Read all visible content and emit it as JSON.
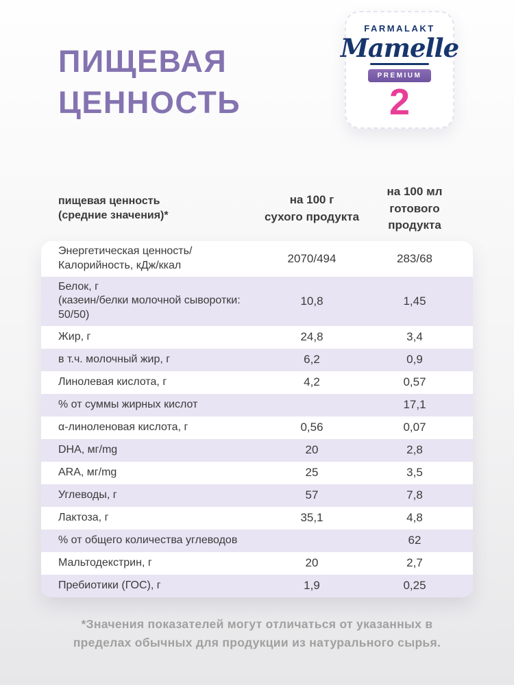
{
  "colors": {
    "title_purple": "#8473b0",
    "brand_navy": "#17366d",
    "stage_pink": "#e83e97",
    "premium_purple": "#7d5fa9",
    "row_lavender": "#e8e4f3",
    "text_dark": "#3a3a3a",
    "footnote_gray": "#a0a0a0"
  },
  "header": {
    "title_line1": "ПИЩЕВАЯ",
    "title_line2": "ЦЕННОСТЬ"
  },
  "brand": {
    "manufacturer": "FARMALAKT",
    "logo": "Mamelle",
    "tier": "PREMIUM",
    "stage": "2"
  },
  "table": {
    "header": {
      "col_label": "пищевая ценность\n(средние значения)*",
      "col_dry": "на 100 г\nсухого продукта",
      "col_ready": "на 100 мл\nготового продукта"
    },
    "rows": [
      {
        "label": "Энергетическая ценность/\nКалорийность, кДж/ккал",
        "per_100g_dry": "2070/494",
        "per_100ml_ready": "283/68",
        "shaded": false
      },
      {
        "label": "Белок, г\n(казеин/белки молочной сыворотки: 50/50)",
        "per_100g_dry": "10,8",
        "per_100ml_ready": "1,45",
        "shaded": true
      },
      {
        "label": "Жир, г",
        "per_100g_dry": "24,8",
        "per_100ml_ready": "3,4",
        "shaded": false
      },
      {
        "label": "в т.ч. молочный жир, г",
        "per_100g_dry": "6,2",
        "per_100ml_ready": "0,9",
        "shaded": true
      },
      {
        "label": "Линолевая кислота, г",
        "per_100g_dry": "4,2",
        "per_100ml_ready": "0,57",
        "shaded": false
      },
      {
        "label": "% от суммы жирных кислот",
        "per_100g_dry": "",
        "per_100ml_ready": "17,1",
        "shaded": true
      },
      {
        "label": "α-линоленовая кислота, г",
        "per_100g_dry": "0,56",
        "per_100ml_ready": "0,07",
        "shaded": false
      },
      {
        "label": "DHA, мг/mg",
        "per_100g_dry": "20",
        "per_100ml_ready": "2,8",
        "shaded": true
      },
      {
        "label": "ARA, мг/mg",
        "per_100g_dry": "25",
        "per_100ml_ready": "3,5",
        "shaded": false
      },
      {
        "label": "Углеводы, г",
        "per_100g_dry": "57",
        "per_100ml_ready": "7,8",
        "shaded": true
      },
      {
        "label": "Лактоза, г",
        "per_100g_dry": "35,1",
        "per_100ml_ready": "4,8",
        "shaded": false
      },
      {
        "label": "% от общего количества углеводов",
        "per_100g_dry": "",
        "per_100ml_ready": "62",
        "shaded": true
      },
      {
        "label": "Мальтодекстрин, г",
        "per_100g_dry": "20",
        "per_100ml_ready": "2,7",
        "shaded": false
      },
      {
        "label": "Пребиотики (ГОС), г",
        "per_100g_dry": "1,9",
        "per_100ml_ready": "0,25",
        "shaded": true
      }
    ]
  },
  "footnote": "*Значения показателей могут отличаться от указанных в\nпределах обычных для продукции из натурального сырья."
}
